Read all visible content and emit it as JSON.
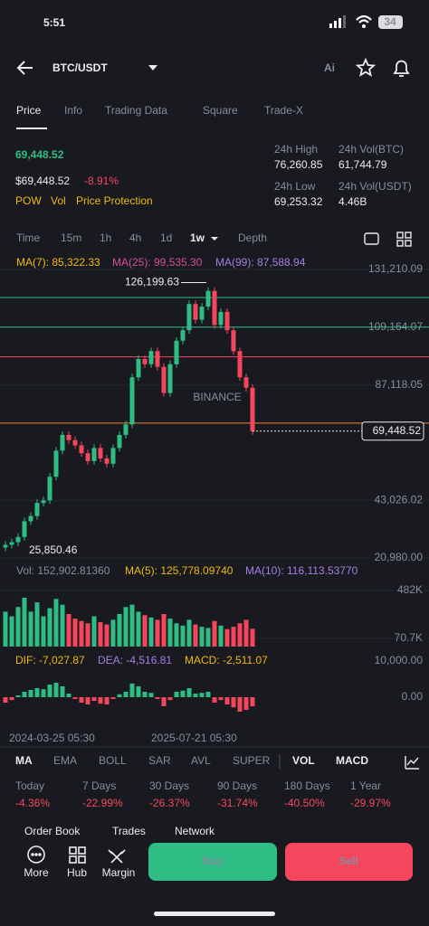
{
  "status": {
    "time": "5:51",
    "battery": "34"
  },
  "header": {
    "pair": "BTC/USDT",
    "ai": "Ai"
  },
  "tabs": [
    "Price",
    "Info",
    "Trading Data",
    "Square",
    "Trade-X"
  ],
  "price": {
    "last": "69,448.52",
    "usd": "$69,448.52",
    "change": "-8.91%",
    "tags": [
      "POW",
      "Vol",
      "Price Protection"
    ]
  },
  "stats": [
    {
      "label": "24h High",
      "value": "76,260.85"
    },
    {
      "label": "24h Vol(BTC)",
      "value": "61,744.79"
    },
    {
      "label": "24h Low",
      "value": "69,253.32"
    },
    {
      "label": "24h Vol(USDT)",
      "value": "4.46B"
    }
  ],
  "intervals": [
    "Time",
    "15m",
    "1h",
    "4h",
    "1d",
    "1w",
    "Depth"
  ],
  "ma_legend": [
    "MA(7): 85,322.33",
    "MA(25): 99,535.30",
    "MA(99): 87,588.94"
  ],
  "chart_data": {
    "type": "candlestick",
    "ylim": [
      20980,
      131210.09
    ],
    "yticks": [
      {
        "value": 131210.09,
        "label": "131,210.09"
      },
      {
        "value": 109164.07,
        "label": "109,164.07"
      },
      {
        "value": 87118.05,
        "label": "87,118.05"
      },
      {
        "value": 43026.02,
        "label": "43,026.02"
      },
      {
        "value": 20980,
        "label": "20,980.00"
      }
    ],
    "current": {
      "value": 69448.52,
      "label": "69,448.52"
    },
    "high_label": {
      "value": 126199.63,
      "label": "126,199.63"
    },
    "low_label": {
      "value": 25850.46,
      "label": "25,850.46"
    },
    "watermark": "BINANCE",
    "levels": [
      {
        "value": 120500,
        "color": "#2ebd85"
      },
      {
        "value": 109164.07,
        "color": "#2ebd85"
      },
      {
        "value": 97800,
        "color": "#f6465d"
      },
      {
        "value": 72500,
        "color": "#f0883e"
      }
    ],
    "closes": [
      26000,
      27000,
      29000,
      35000,
      37000,
      42000,
      43000,
      52000,
      62000,
      68000,
      66000,
      64000,
      61000,
      58000,
      63000,
      59000,
      57000,
      63000,
      68000,
      72000,
      90000,
      97000,
      95000,
      100000,
      94000,
      84000,
      95000,
      104000,
      108000,
      118000,
      112000,
      117000,
      123000,
      110000,
      115000,
      108000,
      100000,
      90000,
      86000,
      69448.52
    ],
    "volume": {
      "legend": [
        "Vol: 152,902.81360",
        "MA(5): 125,778.09740",
        "MA(10): 116,113.53770"
      ],
      "ylim": [
        0,
        482000
      ],
      "yticks": [
        {
          "value": 482000,
          "label": "482K"
        },
        {
          "value": 70700,
          "label": "70.7K"
        }
      ],
      "values": [
        300000,
        260000,
        340000,
        420000,
        300000,
        380000,
        260000,
        330000,
        410000,
        360000,
        280000,
        240000,
        220000,
        200000,
        260000,
        210000,
        190000,
        230000,
        280000,
        340000,
        360000,
        300000,
        270000,
        250000,
        230000,
        280000,
        240000,
        200000,
        180000,
        230000,
        190000,
        170000,
        160000,
        220000,
        180000,
        150000,
        170000,
        200000,
        230000,
        152902.8136
      ]
    },
    "macd": {
      "legend": [
        "DIF: -7,027.87",
        "DEA: -4,516.81",
        "MACD: -2,511.07"
      ],
      "ylim": [
        -8000,
        10000
      ],
      "yticks": [
        {
          "value": 10000,
          "label": "10,000.00"
        },
        {
          "value": 0,
          "label": "0.00"
        }
      ],
      "values": [
        -1500,
        -800,
        500,
        1500,
        2000,
        2500,
        2200,
        3500,
        4000,
        3000,
        1000,
        -500,
        -1500,
        -2000,
        -1000,
        -1800,
        -2000,
        -500,
        800,
        1500,
        3800,
        3000,
        1500,
        1200,
        -500,
        -2500,
        -800,
        1500,
        1800,
        2500,
        1000,
        1200,
        1500,
        -1500,
        -800,
        -2000,
        -2800,
        -4000,
        -3500,
        -2511.07
      ]
    },
    "dates": [
      "2024-03-25 05:30",
      "2025-07-21 05:30"
    ]
  },
  "indicators": [
    "MA",
    "EMA",
    "BOLL",
    "SAR",
    "AVL",
    "SUPER",
    "VOL",
    "MACD"
  ],
  "performance": [
    {
      "label": "Today",
      "value": "-4.36%"
    },
    {
      "label": "7 Days",
      "value": "-22.99%"
    },
    {
      "label": "30 Days",
      "value": "-26.37%"
    },
    {
      "label": "90 Days",
      "value": "-31.74%"
    },
    {
      "label": "180 Days",
      "value": "-40.50%"
    },
    {
      "label": "1 Year",
      "value": "-29.97%"
    }
  ],
  "lower_tabs": [
    "Order Book",
    "Trades",
    "Network"
  ],
  "nav": [
    "More",
    "Hub",
    "Margin"
  ],
  "buttons": {
    "buy": "Buy",
    "sell": "Sell"
  }
}
